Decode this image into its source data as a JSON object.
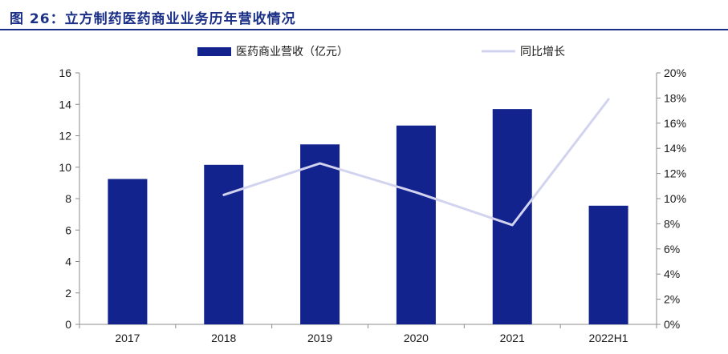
{
  "figure": {
    "title": "图 26：立方制药医药商业业务历年营收情况"
  },
  "chart_data": {
    "type": "bar",
    "categories": [
      "2017",
      "2018",
      "2019",
      "2020",
      "2021",
      "2022H1"
    ],
    "series": [
      {
        "name": "医药商业营收（亿元）",
        "type": "bar",
        "axis": "left",
        "color": "#13238e",
        "values": [
          9.25,
          10.15,
          11.45,
          12.65,
          13.7,
          7.55
        ]
      },
      {
        "name": "同比增长",
        "type": "line",
        "axis": "right",
        "color": "#d2d4ef",
        "values": [
          null,
          0.103,
          0.128,
          0.105,
          0.079,
          0.179
        ]
      }
    ],
    "ylim_left": [
      0,
      16
    ],
    "yticks_left": [
      "0",
      "2",
      "4",
      "6",
      "8",
      "10",
      "12",
      "14",
      "16"
    ],
    "ylim_right": [
      0,
      0.2
    ],
    "yticks_right": [
      "0%",
      "2%",
      "4%",
      "6%",
      "8%",
      "10%",
      "12%",
      "14%",
      "16%",
      "18%",
      "20%"
    ],
    "legend_position": "top",
    "grid": false
  }
}
